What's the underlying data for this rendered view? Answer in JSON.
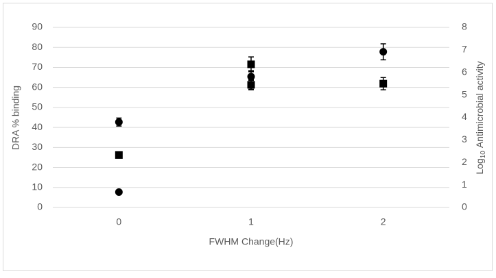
{
  "chart_data": {
    "type": "scatter",
    "x_label": "FWHM Change(Hz)",
    "y_label": "DRA % binding",
    "y2_label_parts": [
      "Log",
      "10",
      "Antimicrobial activity"
    ],
    "xlim": [
      -0.5,
      2.5
    ],
    "xticks": [
      0,
      1,
      2
    ],
    "ylim": [
      0,
      90
    ],
    "yticks": [
      0,
      10,
      20,
      30,
      40,
      50,
      60,
      70,
      80,
      90
    ],
    "y2lim": [
      0,
      8
    ],
    "y2ticks": [
      0,
      1,
      2,
      3,
      4,
      5,
      6,
      7,
      8
    ],
    "grid": true,
    "series": [
      {
        "color": "#000000",
        "marker": "circle",
        "x": [
          0,
          1,
          2
        ],
        "values": [
          42.7,
          65.4,
          77.8
        ],
        "errors": [
          2,
          3,
          4
        ]
      },
      {
        "color": "#000000",
        "marker": "circle",
        "x": [
          0,
          1
        ],
        "values": [
          7.7,
          61.3
        ],
        "errors": [
          0,
          2.5
        ]
      },
      {
        "color": "#000000",
        "marker": "square",
        "axis": "y2",
        "x": [
          0,
          1,
          2
        ],
        "values": [
          2.33,
          6.36,
          5.5
        ],
        "errors": [
          0.1,
          0.33,
          0.27
        ]
      },
      {
        "color": "#000000",
        "marker": "square",
        "axis": "y2",
        "x": [
          1
        ],
        "values": [
          5.45
        ],
        "errors": [
          0.2
        ]
      }
    ]
  }
}
